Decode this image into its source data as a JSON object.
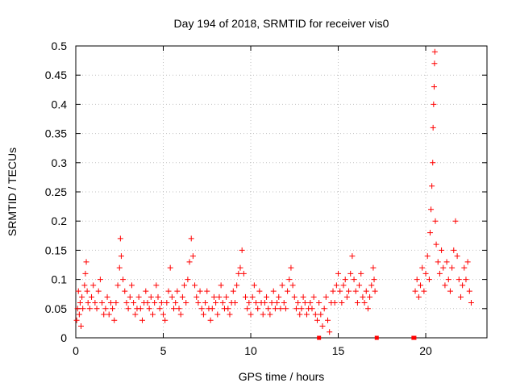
{
  "chart_data": {
    "type": "scatter",
    "title": "Day 194 of 2018, SRMTID for receiver vis0",
    "xlabel": "GPS time / hours",
    "ylabel": "SRMTID / TECUs",
    "xlim": [
      0,
      23.5
    ],
    "ylim": [
      0,
      0.5
    ],
    "xticks": [
      0,
      5,
      10,
      15,
      20
    ],
    "yticks": [
      0,
      0.05,
      0.1,
      0.15,
      0.2,
      0.25,
      0.3,
      0.35,
      0.4,
      0.45,
      0.5
    ],
    "xtick_labels": [
      "0",
      "5",
      "10",
      "15",
      "20"
    ],
    "ytick_labels": [
      "0",
      "0.05",
      "0.1",
      "0.15",
      "0.2",
      "0.25",
      "0.3",
      "0.35",
      "0.4",
      "0.45",
      "0.5"
    ],
    "grid": true,
    "legend": "none",
    "colors": {
      "marker": "#ff0000",
      "grid": "#c0c0c0",
      "axis": "#000000"
    },
    "series": [
      {
        "marker": "plus",
        "points": [
          [
            0.05,
            0.03
          ],
          [
            0.1,
            0.05
          ],
          [
            0.15,
            0.08
          ],
          [
            0.2,
            0.04
          ],
          [
            0.25,
            0.06
          ],
          [
            0.3,
            0.02
          ],
          [
            0.35,
            0.07
          ],
          [
            0.4,
            0.05
          ],
          [
            0.5,
            0.09
          ],
          [
            0.55,
            0.11
          ],
          [
            0.6,
            0.13
          ],
          [
            0.65,
            0.08
          ],
          [
            0.7,
            0.06
          ],
          [
            0.8,
            0.05
          ],
          [
            0.9,
            0.07
          ],
          [
            1.0,
            0.09
          ],
          [
            1.1,
            0.06
          ],
          [
            1.2,
            0.05
          ],
          [
            1.3,
            0.08
          ],
          [
            1.4,
            0.1
          ],
          [
            1.5,
            0.06
          ],
          [
            1.6,
            0.04
          ],
          [
            1.7,
            0.05
          ],
          [
            1.8,
            0.07
          ],
          [
            1.9,
            0.04
          ],
          [
            2.0,
            0.06
          ],
          [
            2.1,
            0.05
          ],
          [
            2.2,
            0.03
          ],
          [
            2.3,
            0.06
          ],
          [
            2.4,
            0.09
          ],
          [
            2.5,
            0.12
          ],
          [
            2.55,
            0.17
          ],
          [
            2.6,
            0.14
          ],
          [
            2.7,
            0.1
          ],
          [
            2.8,
            0.08
          ],
          [
            2.9,
            0.06
          ],
          [
            3.0,
            0.05
          ],
          [
            3.1,
            0.07
          ],
          [
            3.2,
            0.09
          ],
          [
            3.3,
            0.06
          ],
          [
            3.4,
            0.04
          ],
          [
            3.5,
            0.05
          ],
          [
            3.6,
            0.07
          ],
          [
            3.7,
            0.05
          ],
          [
            3.8,
            0.03
          ],
          [
            3.9,
            0.06
          ],
          [
            4.0,
            0.08
          ],
          [
            4.1,
            0.06
          ],
          [
            4.2,
            0.05
          ],
          [
            4.3,
            0.07
          ],
          [
            4.4,
            0.04
          ],
          [
            4.5,
            0.06
          ],
          [
            4.6,
            0.09
          ],
          [
            4.7,
            0.07
          ],
          [
            4.8,
            0.05
          ],
          [
            4.9,
            0.06
          ],
          [
            5.0,
            0.04
          ],
          [
            5.1,
            0.03
          ],
          [
            5.2,
            0.06
          ],
          [
            5.3,
            0.08
          ],
          [
            5.4,
            0.12
          ],
          [
            5.5,
            0.07
          ],
          [
            5.6,
            0.05
          ],
          [
            5.7,
            0.06
          ],
          [
            5.8,
            0.08
          ],
          [
            5.9,
            0.05
          ],
          [
            6.0,
            0.04
          ],
          [
            6.1,
            0.07
          ],
          [
            6.2,
            0.09
          ],
          [
            6.3,
            0.06
          ],
          [
            6.4,
            0.1
          ],
          [
            6.5,
            0.13
          ],
          [
            6.6,
            0.17
          ],
          [
            6.7,
            0.14
          ],
          [
            6.8,
            0.09
          ],
          [
            6.9,
            0.07
          ],
          [
            7.0,
            0.06
          ],
          [
            7.1,
            0.08
          ],
          [
            7.2,
            0.05
          ],
          [
            7.3,
            0.04
          ],
          [
            7.4,
            0.06
          ],
          [
            7.5,
            0.08
          ],
          [
            7.6,
            0.05
          ],
          [
            7.7,
            0.03
          ],
          [
            7.8,
            0.05
          ],
          [
            7.9,
            0.07
          ],
          [
            8.0,
            0.06
          ],
          [
            8.1,
            0.04
          ],
          [
            8.2,
            0.07
          ],
          [
            8.3,
            0.09
          ],
          [
            8.4,
            0.06
          ],
          [
            8.5,
            0.05
          ],
          [
            8.6,
            0.07
          ],
          [
            8.7,
            0.05
          ],
          [
            8.8,
            0.04
          ],
          [
            8.9,
            0.06
          ],
          [
            9.0,
            0.08
          ],
          [
            9.1,
            0.06
          ],
          [
            9.2,
            0.09
          ],
          [
            9.3,
            0.11
          ],
          [
            9.4,
            0.12
          ],
          [
            9.5,
            0.15
          ],
          [
            9.6,
            0.11
          ],
          [
            9.7,
            0.07
          ],
          [
            9.8,
            0.05
          ],
          [
            9.9,
            0.06
          ],
          [
            10.0,
            0.04
          ],
          [
            10.1,
            0.07
          ],
          [
            10.2,
            0.09
          ],
          [
            10.3,
            0.06
          ],
          [
            10.4,
            0.05
          ],
          [
            10.5,
            0.08
          ],
          [
            10.6,
            0.06
          ],
          [
            10.7,
            0.04
          ],
          [
            10.8,
            0.06
          ],
          [
            10.9,
            0.07
          ],
          [
            11.0,
            0.05
          ],
          [
            11.1,
            0.04
          ],
          [
            11.2,
            0.06
          ],
          [
            11.3,
            0.08
          ],
          [
            11.4,
            0.05
          ],
          [
            11.5,
            0.06
          ],
          [
            11.6,
            0.07
          ],
          [
            11.7,
            0.05
          ],
          [
            11.8,
            0.09
          ],
          [
            11.9,
            0.06
          ],
          [
            12.0,
            0.05
          ],
          [
            12.1,
            0.08
          ],
          [
            12.2,
            0.1
          ],
          [
            12.3,
            0.12
          ],
          [
            12.4,
            0.09
          ],
          [
            12.5,
            0.07
          ],
          [
            12.6,
            0.05
          ],
          [
            12.7,
            0.06
          ],
          [
            12.8,
            0.04
          ],
          [
            12.9,
            0.05
          ],
          [
            13.0,
            0.07
          ],
          [
            13.1,
            0.06
          ],
          [
            13.2,
            0.04
          ],
          [
            13.3,
            0.05
          ],
          [
            13.4,
            0.06
          ],
          [
            13.5,
            0.05
          ],
          [
            13.6,
            0.07
          ],
          [
            13.7,
            0.04
          ],
          [
            13.8,
            0.03
          ],
          [
            13.9,
            0.06
          ],
          [
            14.0,
            0.04
          ],
          [
            14.1,
            0.02
          ],
          [
            14.2,
            0.05
          ],
          [
            14.3,
            0.07
          ],
          [
            14.4,
            0.03
          ],
          [
            14.5,
            0.01
          ],
          [
            14.6,
            0.06
          ],
          [
            14.7,
            0.08
          ],
          [
            14.8,
            0.06
          ],
          [
            14.9,
            0.09
          ],
          [
            15.0,
            0.11
          ],
          [
            15.1,
            0.08
          ],
          [
            15.2,
            0.06
          ],
          [
            15.3,
            0.09
          ],
          [
            15.4,
            0.1
          ],
          [
            15.5,
            0.07
          ],
          [
            15.6,
            0.08
          ],
          [
            15.7,
            0.11
          ],
          [
            15.8,
            0.14
          ],
          [
            15.9,
            0.1
          ],
          [
            16.0,
            0.08
          ],
          [
            16.1,
            0.06
          ],
          [
            16.2,
            0.09
          ],
          [
            16.3,
            0.11
          ],
          [
            16.4,
            0.07
          ],
          [
            16.5,
            0.06
          ],
          [
            16.6,
            0.08
          ],
          [
            16.7,
            0.05
          ],
          [
            16.8,
            0.07
          ],
          [
            16.9,
            0.09
          ],
          [
            17.0,
            0.12
          ],
          [
            17.05,
            0.1
          ],
          [
            17.1,
            0.08
          ],
          [
            19.4,
            0.08
          ],
          [
            19.5,
            0.1
          ],
          [
            19.6,
            0.07
          ],
          [
            19.7,
            0.09
          ],
          [
            19.8,
            0.12
          ],
          [
            19.9,
            0.08
          ],
          [
            20.0,
            0.11
          ],
          [
            20.1,
            0.14
          ],
          [
            20.2,
            0.1
          ],
          [
            20.25,
            0.18
          ],
          [
            20.3,
            0.22
          ],
          [
            20.35,
            0.26
          ],
          [
            20.4,
            0.3
          ],
          [
            20.42,
            0.36
          ],
          [
            20.45,
            0.4
          ],
          [
            20.48,
            0.43
          ],
          [
            20.5,
            0.47
          ],
          [
            20.52,
            0.49
          ],
          [
            20.55,
            0.2
          ],
          [
            20.6,
            0.16
          ],
          [
            20.7,
            0.13
          ],
          [
            20.8,
            0.11
          ],
          [
            20.9,
            0.15
          ],
          [
            21.0,
            0.12
          ],
          [
            21.1,
            0.09
          ],
          [
            21.2,
            0.13
          ],
          [
            21.3,
            0.1
          ],
          [
            21.4,
            0.08
          ],
          [
            21.5,
            0.12
          ],
          [
            21.6,
            0.15
          ],
          [
            21.7,
            0.2
          ],
          [
            21.8,
            0.14
          ],
          [
            21.9,
            0.1
          ],
          [
            22.0,
            0.07
          ],
          [
            22.1,
            0.09
          ],
          [
            22.2,
            0.12
          ],
          [
            22.3,
            0.1
          ],
          [
            22.4,
            0.13
          ],
          [
            22.5,
            0.08
          ],
          [
            22.6,
            0.06
          ]
        ]
      },
      {
        "marker": "square",
        "points": [
          [
            13.9,
            0.0
          ],
          [
            17.2,
            0.0
          ],
          [
            19.3,
            0.0
          ],
          [
            19.35,
            0.0
          ]
        ]
      }
    ]
  }
}
